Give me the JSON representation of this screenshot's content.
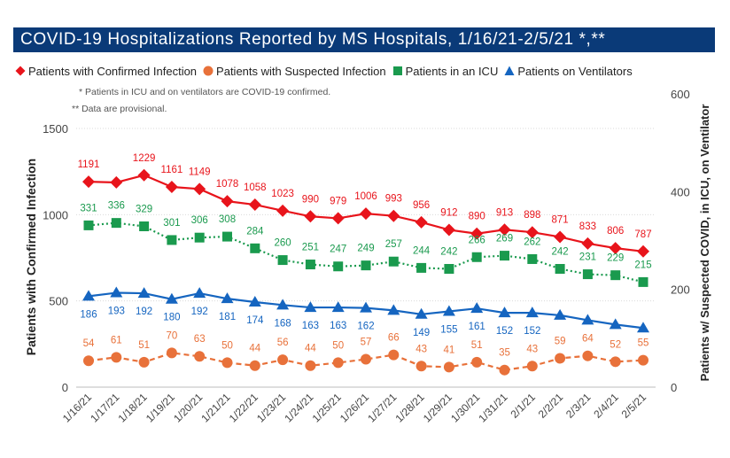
{
  "title": "COVID-19 Hospitalizations Reported by MS Hospitals, 1/16/21-2/5/21 *,**",
  "notes": [
    "* Patients in ICU and on ventilators are COVID-19 confirmed.",
    "** Data are provisional."
  ],
  "legend": [
    {
      "label": "Patients with Confirmed Infection",
      "icon": "diamond-marker",
      "color": "#e8141b"
    },
    {
      "label": "Patients with Suspected Infection",
      "icon": "circle-marker",
      "color": "#e8713a"
    },
    {
      "label": "Patients in an ICU",
      "icon": "square-marker",
      "color": "#1a9a4e"
    },
    {
      "label": "Patients on Ventilators",
      "icon": "triangle-marker",
      "color": "#1565c0"
    }
  ],
  "chart_data": {
    "type": "line",
    "categories": [
      "1/16/21",
      "1/17/21",
      "1/18/21",
      "1/19/21",
      "1/20/21",
      "1/21/21",
      "1/22/21",
      "1/23/21",
      "1/24/21",
      "1/25/21",
      "1/26/21",
      "1/27/21",
      "1/28/21",
      "1/29/21",
      "1/30/21",
      "1/31/21",
      "2/1/21",
      "2/2/21",
      "2/3/21",
      "2/4/21",
      "2/5/21"
    ],
    "ylabel_left": "Patients with Confirmed Infection",
    "ylabel_right": "Patients w/ Suspected COVID, in ICU, on Ventilator",
    "ylim_left": [
      0,
      1500
    ],
    "ylim_right": [
      0,
      600
    ],
    "yticks_left": [
      0,
      500,
      1000,
      1500
    ],
    "yticks_right": [
      0,
      200,
      400,
      600
    ],
    "grid": "horizontal",
    "legend_position": "top",
    "series": [
      {
        "name": "Patients with Confirmed Infection",
        "axis": "left",
        "color": "#e8141b",
        "marker": "diamond",
        "line": "solid",
        "values": [
          1191,
          1187,
          1229,
          1161,
          1149,
          1078,
          1058,
          1023,
          990,
          979,
          1006,
          993,
          956,
          912,
          890,
          913,
          898,
          871,
          833,
          806,
          787
        ],
        "labels": [
          "1191",
          "",
          "1229",
          "1161",
          "1149",
          "1078",
          "1058",
          "1023",
          "990",
          "979",
          "1006",
          "993",
          "956",
          "912",
          "890",
          "913",
          "898",
          "871",
          "833",
          "806",
          "787"
        ]
      },
      {
        "name": "Patients in an ICU",
        "axis": "right",
        "color": "#1a9a4e",
        "marker": "square",
        "line": "dotted",
        "values": [
          331,
          336,
          329,
          301,
          306,
          308,
          284,
          260,
          251,
          247,
          249,
          257,
          244,
          242,
          266,
          269,
          262,
          242,
          231,
          229,
          215
        ],
        "labels": [
          "331",
          "336",
          "329",
          "301",
          "306",
          "308",
          "284",
          "260",
          "251",
          "247",
          "249",
          "257",
          "244",
          "242",
          "266",
          "269",
          "262",
          "242",
          "231",
          "229",
          "215"
        ]
      },
      {
        "name": "Patients on Ventilators",
        "axis": "right",
        "color": "#1565c0",
        "marker": "triangle",
        "line": "solid",
        "values": [
          186,
          193,
          192,
          180,
          192,
          181,
          174,
          168,
          163,
          163,
          162,
          157,
          149,
          155,
          161,
          152,
          152,
          147,
          137,
          128,
          121
        ],
        "labels": [
          "186",
          "193",
          "192",
          "180",
          "192",
          "181",
          "174",
          "168",
          "163",
          "163",
          "162",
          "",
          "149",
          "155",
          "161",
          "152",
          "152",
          "",
          "",
          "",
          ""
        ]
      },
      {
        "name": "Patients with Suspected Infection",
        "axis": "right",
        "color": "#e8713a",
        "marker": "circle",
        "line": "dashed",
        "values": [
          54,
          61,
          51,
          70,
          63,
          50,
          44,
          56,
          44,
          50,
          57,
          66,
          43,
          41,
          51,
          35,
          43,
          59,
          64,
          52,
          55
        ],
        "labels": [
          "54",
          "61",
          "51",
          "70",
          "63",
          "50",
          "44",
          "56",
          "44",
          "50",
          "57",
          "66",
          "43",
          "41",
          "51",
          "35",
          "43",
          "59",
          "64",
          "52",
          "55"
        ]
      }
    ]
  }
}
